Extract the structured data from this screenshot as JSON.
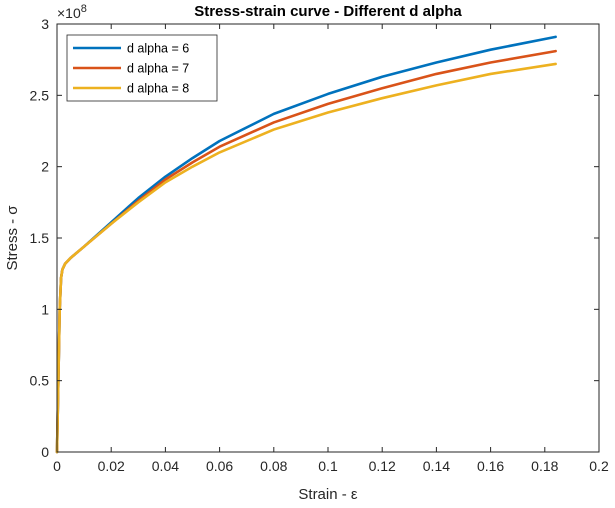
{
  "chart_data": {
    "type": "line",
    "title": "Stress-strain curve - Different d alpha",
    "xlabel": "Strain - ε",
    "ylabel": "Stress - σ",
    "xlim": [
      0,
      0.2
    ],
    "ylim": [
      0,
      3
    ],
    "y_exponent_label": "×10",
    "y_exponent_power": "8",
    "xticks": [
      0,
      0.02,
      0.04,
      0.06,
      0.08,
      0.1,
      0.12,
      0.14,
      0.16,
      0.18,
      0.2
    ],
    "xtick_labels": [
      "0",
      "0.02",
      "0.04",
      "0.06",
      "0.08",
      "0.1",
      "0.12",
      "0.14",
      "0.16",
      "0.18",
      "0.2"
    ],
    "yticks": [
      0,
      0.5,
      1,
      1.5,
      2,
      2.5,
      3
    ],
    "ytick_labels": [
      "0",
      "0.5",
      "1",
      "1.5",
      "2",
      "2.5",
      "3"
    ],
    "grid": false,
    "legend_position": "top-left",
    "x": [
      0,
      0.0005,
      0.001,
      0.0015,
      0.002,
      0.003,
      0.005,
      0.01,
      0.02,
      0.03,
      0.04,
      0.05,
      0.06,
      0.08,
      0.1,
      0.12,
      0.14,
      0.16,
      0.184
    ],
    "series": [
      {
        "name": "d alpha = 6",
        "color": "#0072BD",
        "values": [
          0,
          0.5,
          1.0,
          1.22,
          1.28,
          1.32,
          1.36,
          1.44,
          1.61,
          1.78,
          1.93,
          2.06,
          2.18,
          2.37,
          2.51,
          2.63,
          2.73,
          2.82,
          2.91
        ]
      },
      {
        "name": "d alpha = 7",
        "color": "#D95319",
        "values": [
          0,
          0.5,
          1.0,
          1.22,
          1.28,
          1.32,
          1.36,
          1.44,
          1.6,
          1.76,
          1.91,
          2.03,
          2.14,
          2.31,
          2.44,
          2.55,
          2.65,
          2.73,
          2.81
        ]
      },
      {
        "name": "d alpha = 8",
        "color": "#EDB120",
        "values": [
          0,
          0.5,
          1.0,
          1.22,
          1.28,
          1.32,
          1.36,
          1.44,
          1.6,
          1.75,
          1.89,
          2.0,
          2.1,
          2.26,
          2.38,
          2.48,
          2.57,
          2.65,
          2.72
        ]
      }
    ]
  }
}
